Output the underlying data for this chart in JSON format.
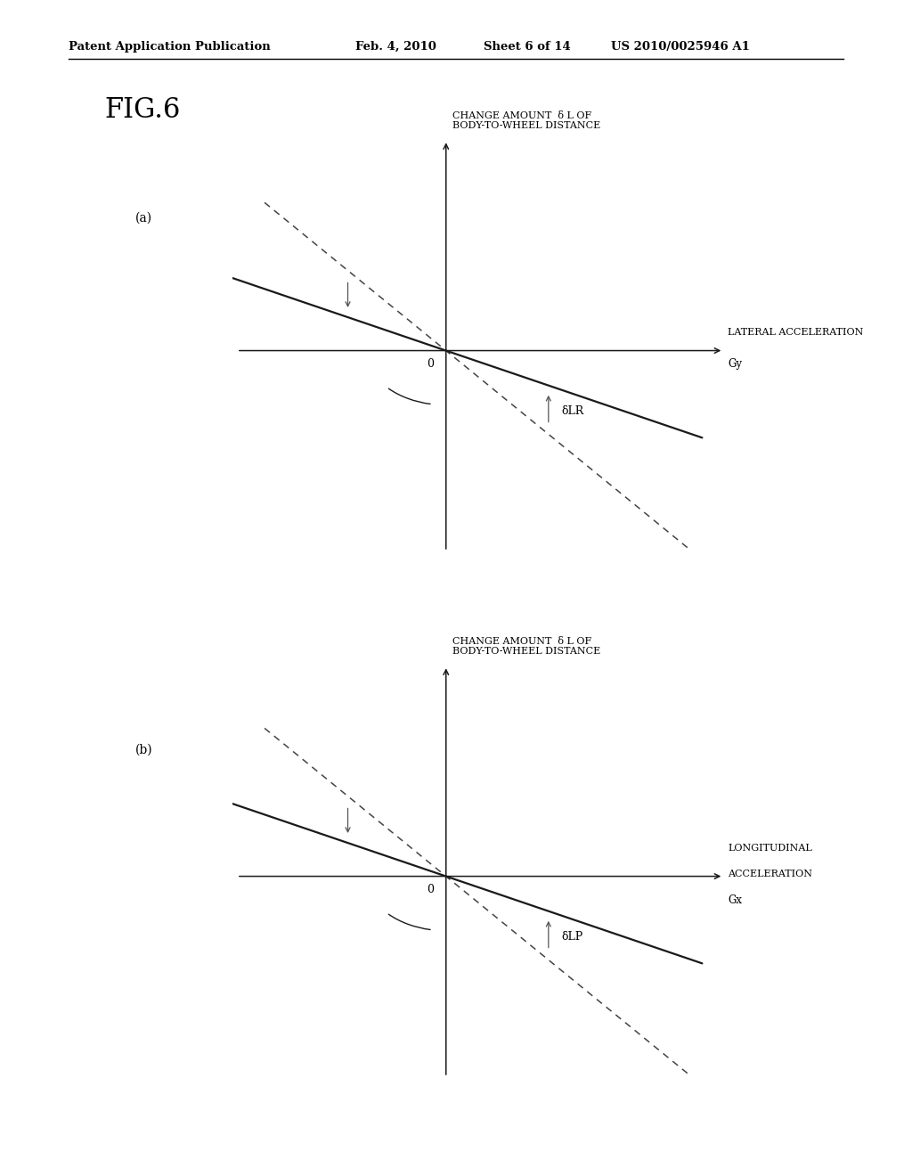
{
  "bg_color": "#ffffff",
  "header_text": "Patent Application Publication",
  "header_date": "Feb. 4, 2010",
  "header_sheet": "Sheet 6 of 14",
  "header_patent": "US 2010/0025946 A1",
  "fig_label": "FIG.6",
  "panel_a_label": "(a)",
  "panel_b_label": "(b)",
  "panel_a_ylabel": "CHANGE AMOUNT  δ L OF\nBODY-TO-WHEEL DISTANCE",
  "panel_a_xlabel1": "LATERAL ACCELERATION",
  "panel_a_xlabel2": "Gy",
  "panel_a_angle_label": "δLR",
  "panel_b_ylabel": "CHANGE AMOUNT  δ L OF\nBODY-TO-WHEEL DISTANCE",
  "panel_b_xlabel1": "LONGITUDINAL",
  "panel_b_xlabel2": "ACCELERATION",
  "panel_b_xlabel3": "Gx",
  "panel_b_angle_label": "δLP",
  "solid_slope": -0.3,
  "dashed_slope": -0.72,
  "axis_color": "#1a1a1a",
  "solid_color": "#1a1a1a",
  "dashed_color": "#444444",
  "label_fontsize": 8,
  "header_fontsize": 9.5,
  "fig_label_fontsize": 22,
  "panel_label_fontsize": 10,
  "zero_fontsize": 9
}
